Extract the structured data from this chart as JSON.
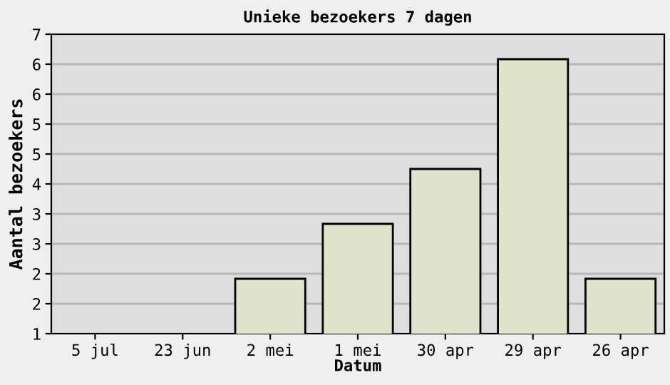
{
  "chart_data": {
    "type": "bar",
    "title": "Unieke bezoekers 7 dagen",
    "xlabel": "Datum",
    "ylabel": "Aantal bezoekers",
    "categories": [
      "5 jul",
      "23 jun",
      "2 mei",
      "1 mei",
      "30 apr",
      "29 apr",
      "26 apr"
    ],
    "values": [
      null,
      null,
      2.1,
      3.2,
      4.3,
      6.5,
      2.1
    ],
    "color": "#dfe3c9",
    "ylim": [
      1,
      7
    ],
    "yticks": [
      1,
      {
        "value": 1.6,
        "label": "2"
      },
      {
        "value": 2.2,
        "label": "2"
      },
      {
        "value": 2.8,
        "label": "3"
      },
      {
        "value": 3.4,
        "label": "3"
      },
      4,
      {
        "value": 4.6,
        "label": "5"
      },
      {
        "value": 5.2,
        "label": "5"
      },
      {
        "value": 5.8,
        "label": "6"
      },
      {
        "value": 6.4,
        "label": "6"
      },
      7
    ],
    "grid": "y",
    "legend": false
  }
}
